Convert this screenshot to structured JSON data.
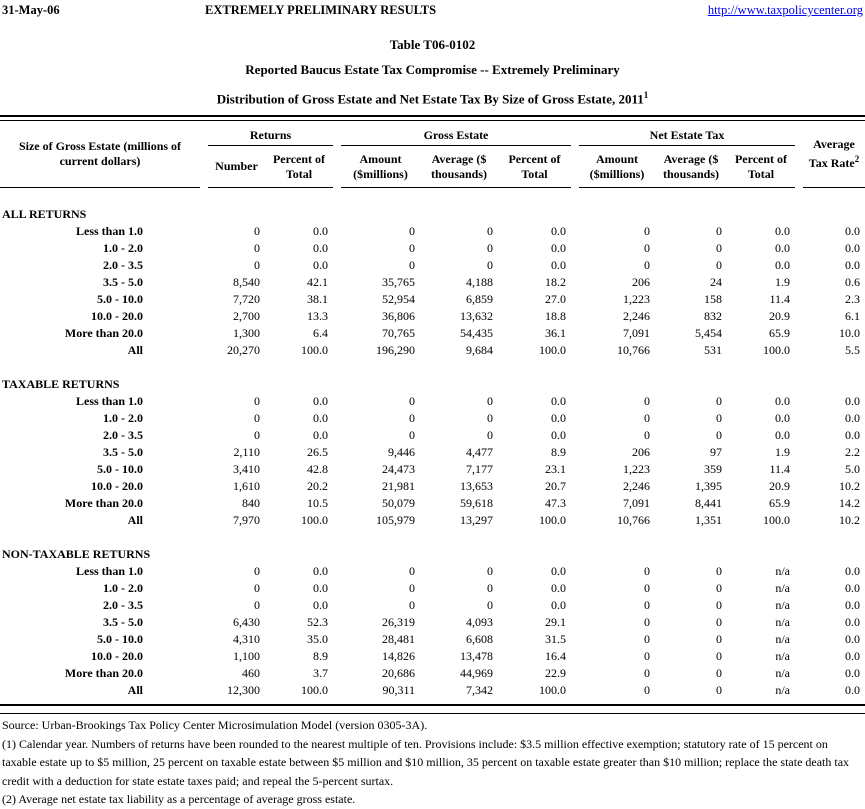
{
  "meta": {
    "date": "31-May-06",
    "banner": "EXTREMELY PRELIMINARY RESULTS",
    "url": "http://www.taxpolicycenter.org"
  },
  "title": {
    "line1": "Table T06-0102",
    "line2": "Reported Baucus Estate Tax Compromise -- Extremely Preliminary",
    "line3": "Distribution of Gross Estate and Net Estate Tax By Size of Gross Estate, 2011",
    "line3_sup": "1"
  },
  "table": {
    "stub_header": "Size of Gross Estate (millions of current dollars)",
    "groups": [
      {
        "label": "Returns",
        "cols": [
          "Number",
          "Percent of Total"
        ]
      },
      {
        "label": "Gross Estate",
        "cols": [
          "Amount ($millions)",
          "Average ($ thousands)",
          "Percent of Total"
        ]
      },
      {
        "label": "Net Estate Tax",
        "cols": [
          "Amount ($millions)",
          "Average ($ thousands)",
          "Percent of Total"
        ]
      }
    ],
    "avg_tax_rate_header": "Average Tax Rate",
    "avg_tax_rate_sup": "2",
    "sections": [
      {
        "name": "ALL RETURNS",
        "rows": [
          {
            "label": "Less than 1.0",
            "values": [
              "0",
              "0.0",
              "0",
              "0",
              "0.0",
              "0",
              "0",
              "0.0",
              "0.0"
            ]
          },
          {
            "label": "1.0 - 2.0",
            "values": [
              "0",
              "0.0",
              "0",
              "0",
              "0.0",
              "0",
              "0",
              "0.0",
              "0.0"
            ]
          },
          {
            "label": "2.0 - 3.5",
            "values": [
              "0",
              "0.0",
              "0",
              "0",
              "0.0",
              "0",
              "0",
              "0.0",
              "0.0"
            ]
          },
          {
            "label": "3.5 - 5.0",
            "values": [
              "8,540",
              "42.1",
              "35,765",
              "4,188",
              "18.2",
              "206",
              "24",
              "1.9",
              "0.6"
            ]
          },
          {
            "label": "5.0 - 10.0",
            "values": [
              "7,720",
              "38.1",
              "52,954",
              "6,859",
              "27.0",
              "1,223",
              "158",
              "11.4",
              "2.3"
            ]
          },
          {
            "label": "10.0 - 20.0",
            "values": [
              "2,700",
              "13.3",
              "36,806",
              "13,632",
              "18.8",
              "2,246",
              "832",
              "20.9",
              "6.1"
            ]
          },
          {
            "label": "More than 20.0",
            "values": [
              "1,300",
              "6.4",
              "70,765",
              "54,435",
              "36.1",
              "7,091",
              "5,454",
              "65.9",
              "10.0"
            ]
          },
          {
            "label": "All",
            "values": [
              "20,270",
              "100.0",
              "196,290",
              "9,684",
              "100.0",
              "10,766",
              "531",
              "100.0",
              "5.5"
            ]
          }
        ]
      },
      {
        "name": "TAXABLE RETURNS",
        "rows": [
          {
            "label": "Less than 1.0",
            "values": [
              "0",
              "0.0",
              "0",
              "0",
              "0.0",
              "0",
              "0",
              "0.0",
              "0.0"
            ]
          },
          {
            "label": "1.0 - 2.0",
            "values": [
              "0",
              "0.0",
              "0",
              "0",
              "0.0",
              "0",
              "0",
              "0.0",
              "0.0"
            ]
          },
          {
            "label": "2.0 - 3.5",
            "values": [
              "0",
              "0.0",
              "0",
              "0",
              "0.0",
              "0",
              "0",
              "0.0",
              "0.0"
            ]
          },
          {
            "label": "3.5 - 5.0",
            "values": [
              "2,110",
              "26.5",
              "9,446",
              "4,477",
              "8.9",
              "206",
              "97",
              "1.9",
              "2.2"
            ]
          },
          {
            "label": "5.0 - 10.0",
            "values": [
              "3,410",
              "42.8",
              "24,473",
              "7,177",
              "23.1",
              "1,223",
              "359",
              "11.4",
              "5.0"
            ]
          },
          {
            "label": "10.0 - 20.0",
            "values": [
              "1,610",
              "20.2",
              "21,981",
              "13,653",
              "20.7",
              "2,246",
              "1,395",
              "20.9",
              "10.2"
            ]
          },
          {
            "label": "More than 20.0",
            "values": [
              "840",
              "10.5",
              "50,079",
              "59,618",
              "47.3",
              "7,091",
              "8,441",
              "65.9",
              "14.2"
            ]
          },
          {
            "label": "All",
            "values": [
              "7,970",
              "100.0",
              "105,979",
              "13,297",
              "100.0",
              "10,766",
              "1,351",
              "100.0",
              "10.2"
            ]
          }
        ]
      },
      {
        "name": "NON-TAXABLE RETURNS",
        "rows": [
          {
            "label": "Less than 1.0",
            "values": [
              "0",
              "0.0",
              "0",
              "0",
              "0.0",
              "0",
              "0",
              "n/a",
              "0.0"
            ]
          },
          {
            "label": "1.0 - 2.0",
            "values": [
              "0",
              "0.0",
              "0",
              "0",
              "0.0",
              "0",
              "0",
              "n/a",
              "0.0"
            ]
          },
          {
            "label": "2.0 - 3.5",
            "values": [
              "0",
              "0.0",
              "0",
              "0",
              "0.0",
              "0",
              "0",
              "n/a",
              "0.0"
            ]
          },
          {
            "label": "3.5 - 5.0",
            "values": [
              "6,430",
              "52.3",
              "26,319",
              "4,093",
              "29.1",
              "0",
              "0",
              "n/a",
              "0.0"
            ]
          },
          {
            "label": "5.0 - 10.0",
            "values": [
              "4,310",
              "35.0",
              "28,481",
              "6,608",
              "31.5",
              "0",
              "0",
              "n/a",
              "0.0"
            ]
          },
          {
            "label": "10.0 - 20.0",
            "values": [
              "1,100",
              "8.9",
              "14,826",
              "13,478",
              "16.4",
              "0",
              "0",
              "n/a",
              "0.0"
            ]
          },
          {
            "label": "More than 20.0",
            "values": [
              "460",
              "3.7",
              "20,686",
              "44,969",
              "22.9",
              "0",
              "0",
              "n/a",
              "0.0"
            ]
          },
          {
            "label": "All",
            "values": [
              "12,300",
              "100.0",
              "90,311",
              "7,342",
              "100.0",
              "0",
              "0",
              "n/a",
              "0.0"
            ]
          }
        ]
      }
    ]
  },
  "footnotes": {
    "source": "Source: Urban-Brookings Tax Policy Center Microsimulation Model (version 0305-3A).",
    "note1": "(1) Calendar year. Numbers of returns have been rounded to the nearest multiple of ten. Provisions include: $3.5 million effective exemption; statutory rate of 15 percent on taxable estate up to $5 million, 25 percent on taxable estate between $5 million and $10 million, 35 percent on taxable estate greater than $10 million; replace the state death tax credit with a deduction for state estate taxes paid; and repeal the 5-percent surtax.",
    "note2": "(2) Average net estate tax liability as a percentage of average gross estate."
  }
}
